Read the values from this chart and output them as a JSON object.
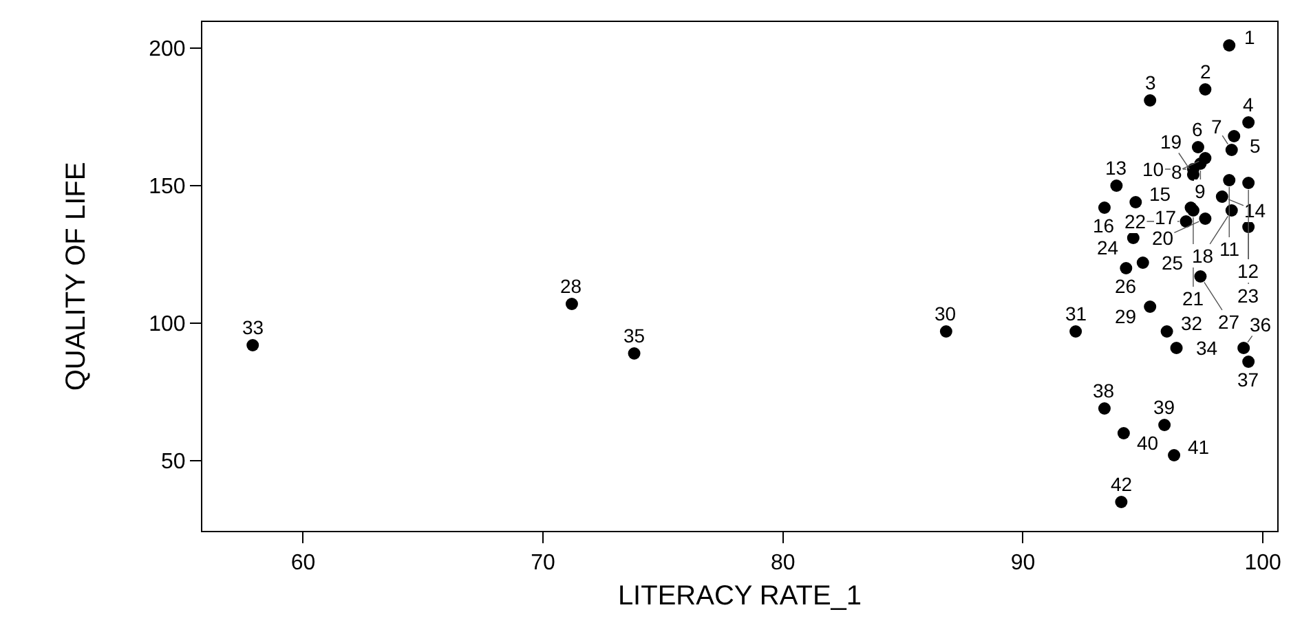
{
  "chart_data": {
    "type": "scatter",
    "xlabel": "LITERACY RATE_1",
    "ylabel": "QUALITY OF LIFE",
    "xlim": [
      55.8,
      100.6
    ],
    "ylim": [
      24.5,
      209.5
    ],
    "xticks": [
      60,
      70,
      80,
      90,
      100
    ],
    "yticks": [
      50,
      100,
      150,
      200
    ],
    "marker": "circle",
    "series": [
      {
        "color": "#000000",
        "x": [
          98.6,
          97.6,
          95.3,
          99.4,
          98.8,
          97.3,
          98.7,
          97.6,
          97.4,
          97.1,
          98.6,
          99.4,
          93.9,
          98.3,
          94.7,
          93.4,
          97.0,
          98.7,
          97.1,
          97.6,
          97.1,
          96.8,
          99.4,
          94.6,
          95.0,
          94.3,
          97.4,
          71.2,
          95.3,
          86.8,
          92.2,
          96.0,
          57.9,
          96.4,
          73.8,
          99.2,
          99.4,
          93.4,
          95.9,
          94.2,
          96.3,
          94.1
        ],
        "values": [
          201,
          185,
          181,
          173,
          168,
          164,
          163,
          160,
          158,
          156,
          152,
          151,
          150,
          146,
          144,
          142,
          142,
          141,
          154,
          138,
          141,
          137,
          135,
          131,
          122,
          120,
          117,
          107,
          106,
          97,
          97,
          97,
          92,
          91,
          89,
          91,
          86,
          69,
          63,
          60,
          52,
          35
        ]
      }
    ],
    "annotations": [
      {
        "text": "1",
        "x": 98.6,
        "y": 201
      },
      {
        "text": "2",
        "x": 97.6,
        "y": 185
      },
      {
        "text": "3",
        "x": 95.3,
        "y": 181
      },
      {
        "text": "4",
        "x": 99.4,
        "y": 173
      },
      {
        "text": "5",
        "x": 98.8,
        "y": 168
      },
      {
        "text": "6",
        "x": 97.3,
        "y": 164
      },
      {
        "text": "7",
        "x": 98.7,
        "y": 163
      },
      {
        "text": "8",
        "x": 97.6,
        "y": 160
      },
      {
        "text": "9",
        "x": 97.4,
        "y": 158
      },
      {
        "text": "10",
        "x": 97.1,
        "y": 156
      },
      {
        "text": "11",
        "x": 98.6,
        "y": 152
      },
      {
        "text": "12",
        "x": 99.4,
        "y": 151
      },
      {
        "text": "13",
        "x": 93.9,
        "y": 150
      },
      {
        "text": "14",
        "x": 98.3,
        "y": 146
      },
      {
        "text": "15",
        "x": 94.7,
        "y": 144
      },
      {
        "text": "16",
        "x": 93.4,
        "y": 142
      },
      {
        "text": "17",
        "x": 97.0,
        "y": 142
      },
      {
        "text": "18",
        "x": 98.7,
        "y": 141
      },
      {
        "text": "19",
        "x": 97.1,
        "y": 154
      },
      {
        "text": "20",
        "x": 97.6,
        "y": 138
      },
      {
        "text": "21",
        "x": 97.1,
        "y": 141
      },
      {
        "text": "22",
        "x": 96.8,
        "y": 137
      },
      {
        "text": "23",
        "x": 99.4,
        "y": 135
      },
      {
        "text": "24",
        "x": 94.6,
        "y": 131
      },
      {
        "text": "25",
        "x": 95.0,
        "y": 122
      },
      {
        "text": "26",
        "x": 94.3,
        "y": 120
      },
      {
        "text": "27",
        "x": 97.4,
        "y": 117
      },
      {
        "text": "28",
        "x": 71.2,
        "y": 107
      },
      {
        "text": "29",
        "x": 95.3,
        "y": 106
      },
      {
        "text": "30",
        "x": 86.8,
        "y": 97
      },
      {
        "text": "31",
        "x": 92.2,
        "y": 97
      },
      {
        "text": "32",
        "x": 96.0,
        "y": 97
      },
      {
        "text": "33",
        "x": 57.9,
        "y": 92
      },
      {
        "text": "34",
        "x": 96.4,
        "y": 91
      },
      {
        "text": "35",
        "x": 73.8,
        "y": 89
      },
      {
        "text": "36",
        "x": 99.2,
        "y": 91
      },
      {
        "text": "37",
        "x": 99.4,
        "y": 86
      },
      {
        "text": "38",
        "x": 93.4,
        "y": 69
      },
      {
        "text": "39",
        "x": 95.9,
        "y": 63
      },
      {
        "text": "40",
        "x": 94.2,
        "y": 60
      },
      {
        "text": "41",
        "x": 96.3,
        "y": 52
      },
      {
        "text": "42",
        "x": 94.1,
        "y": 35
      }
    ]
  }
}
